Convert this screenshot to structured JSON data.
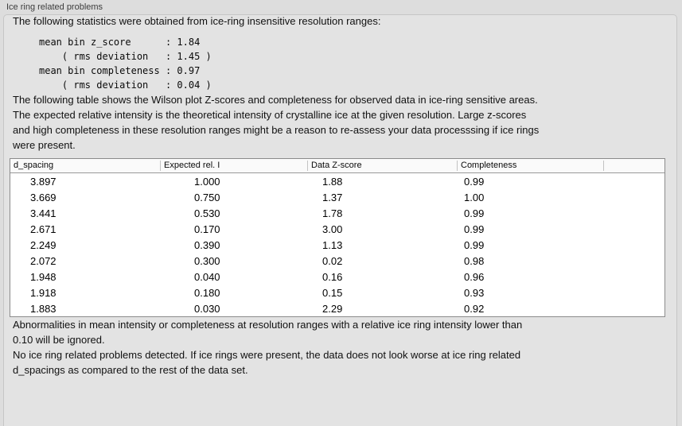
{
  "panel": {
    "title": "Ice ring related problems"
  },
  "colors": {
    "page_bg": "#dddddd",
    "panel_bg": "#e3e3e3",
    "panel_border": "#c6c6c6",
    "table_bg": "#ffffff",
    "table_border": "#8b8b8b",
    "text": "#111111"
  },
  "intro": "The following statistics were obtained from ice-ring insensitive resolution ranges:",
  "stats_block": {
    "lines": [
      "mean bin z_score      : 1.84",
      "    ( rms deviation   : 1.45 )",
      "mean bin completeness : 0.97",
      "    ( rms deviation   : 0.04 )"
    ],
    "mean_bin_z_score": "1.84",
    "z_score_rms_deviation": "1.45",
    "mean_bin_completeness": "0.97",
    "completeness_rms_deviation": "0.04"
  },
  "table_description": {
    "lines": [
      "The following table shows the Wilson plot Z-scores and completeness for observed data in ice-ring sensitive areas.",
      "The expected relative intensity is the theoretical intensity of crystalline ice at the given resolution. Large z-scores",
      "and high completeness in these resolution ranges might be a reason to re-assess your data processsing if ice rings",
      "were present."
    ]
  },
  "table": {
    "columns": [
      "d_spacing",
      "Expected rel. I",
      "Data Z-score",
      "Completeness",
      ""
    ],
    "rows": [
      [
        "3.897",
        "1.000",
        "1.88",
        "0.99"
      ],
      [
        "3.669",
        "0.750",
        "1.37",
        "1.00"
      ],
      [
        "3.441",
        "0.530",
        "1.78",
        "0.99"
      ],
      [
        "2.671",
        "0.170",
        "3.00",
        "0.99"
      ],
      [
        "2.249",
        "0.390",
        "1.13",
        "0.99"
      ],
      [
        "2.072",
        "0.300",
        "0.02",
        "0.98"
      ],
      [
        "1.948",
        "0.040",
        "0.16",
        "0.96"
      ],
      [
        "1.918",
        "0.180",
        "0.15",
        "0.93"
      ],
      [
        "1.883",
        "0.030",
        "2.29",
        "0.92"
      ]
    ]
  },
  "notes": {
    "ignore_note": {
      "lines": [
        "Abnormalities in mean intensity or completeness at resolution ranges with a relative ice ring intensity lower than",
        "0.10 will be ignored."
      ]
    },
    "conclusion": {
      "lines": [
        "No ice ring related problems detected. If ice rings were present, the data does not look worse at ice ring related",
        "d_spacings as compared to the rest of the data set."
      ]
    }
  }
}
